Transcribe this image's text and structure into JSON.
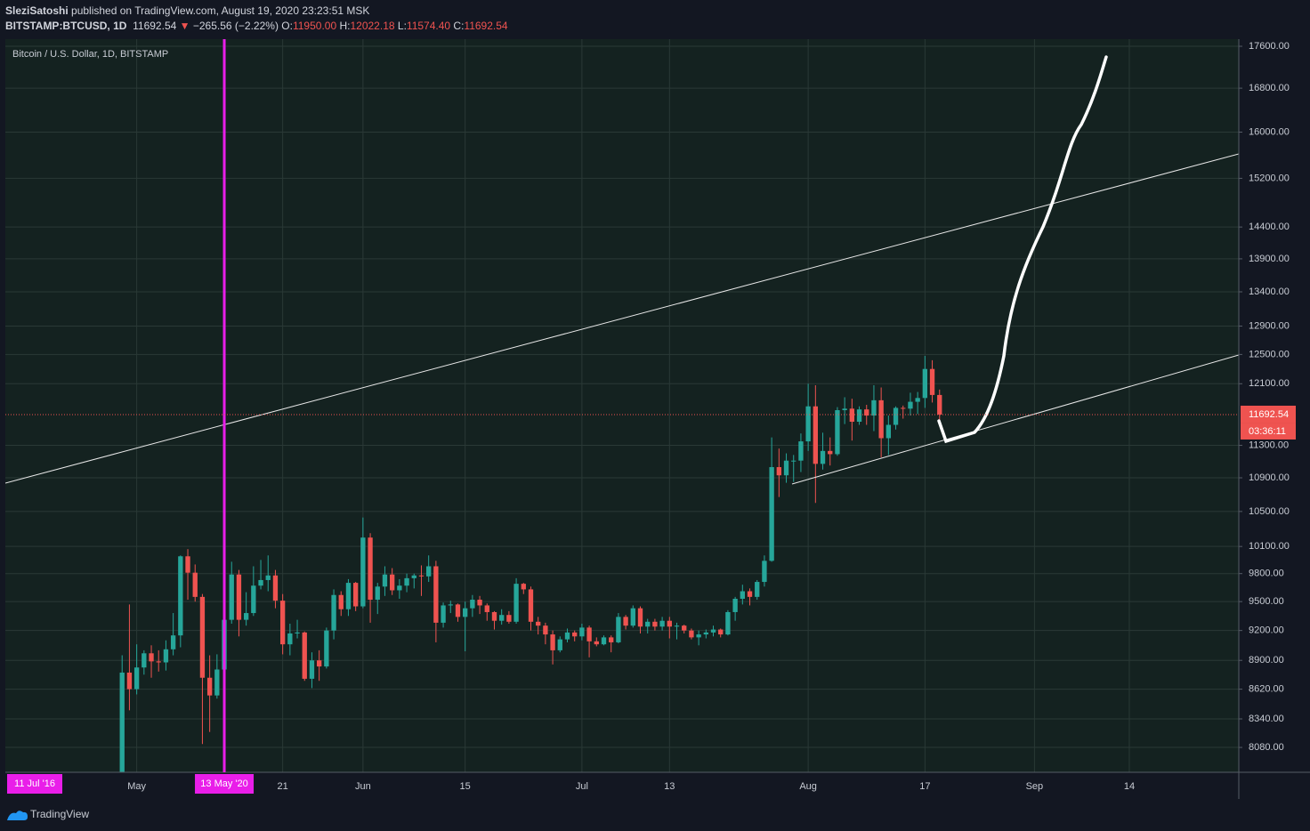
{
  "header": {
    "author": "SleziSatoshi",
    "published": "published on TradingView.com, August 19, 2020 23:23:51 MSK",
    "symbol": "BITSTAMP:BTCUSD, 1D",
    "price": "11692.54",
    "arrow": "▼",
    "change": "−265.56 (−2.22%)",
    "o_label": "O:",
    "o_value": "11950.00",
    "h_label": "H:",
    "h_value": "12022.18",
    "l_label": "L:",
    "l_value": "11574.40",
    "c_label": "C:",
    "c_value": "11692.54"
  },
  "footer": {
    "brand": "TradingView"
  },
  "chart_data": {
    "type": "candlestick",
    "title": "Bitcoin / U.S. Dollar, 1D, BITSTAMP",
    "log_scale": true,
    "grid": true,
    "up_color": "#26a69a",
    "down_color": "#ef5350",
    "x": [
      "2020-04-29",
      "2020-04-30",
      "2020-05-01",
      "2020-05-02",
      "2020-05-03",
      "2020-05-04",
      "2020-05-05",
      "2020-05-06",
      "2020-05-07",
      "2020-05-08",
      "2020-05-09",
      "2020-05-10",
      "2020-05-11",
      "2020-05-12",
      "2020-05-13",
      "2020-05-14",
      "2020-05-15",
      "2020-05-16",
      "2020-05-17",
      "2020-05-18",
      "2020-05-19",
      "2020-05-20",
      "2020-05-21",
      "2020-05-22",
      "2020-05-23",
      "2020-05-24",
      "2020-05-25",
      "2020-05-26",
      "2020-05-27",
      "2020-05-28",
      "2020-05-29",
      "2020-05-30",
      "2020-05-31",
      "2020-06-01",
      "2020-06-02",
      "2020-06-03",
      "2020-06-04",
      "2020-06-05",
      "2020-06-06",
      "2020-06-07",
      "2020-06-08",
      "2020-06-09",
      "2020-06-10",
      "2020-06-11",
      "2020-06-12",
      "2020-06-13",
      "2020-06-14",
      "2020-06-15",
      "2020-06-16",
      "2020-06-17",
      "2020-06-18",
      "2020-06-19",
      "2020-06-20",
      "2020-06-21",
      "2020-06-22",
      "2020-06-23",
      "2020-06-24",
      "2020-06-25",
      "2020-06-26",
      "2020-06-27",
      "2020-06-28",
      "2020-06-29",
      "2020-06-30",
      "2020-07-01",
      "2020-07-02",
      "2020-07-03",
      "2020-07-04",
      "2020-07-05",
      "2020-07-06",
      "2020-07-07",
      "2020-07-08",
      "2020-07-09",
      "2020-07-10",
      "2020-07-11",
      "2020-07-12",
      "2020-07-13",
      "2020-07-14",
      "2020-07-15",
      "2020-07-16",
      "2020-07-17",
      "2020-07-18",
      "2020-07-19",
      "2020-07-20",
      "2020-07-21",
      "2020-07-22",
      "2020-07-23",
      "2020-07-24",
      "2020-07-25",
      "2020-07-26",
      "2020-07-27",
      "2020-07-28",
      "2020-07-29",
      "2020-07-30",
      "2020-07-31",
      "2020-08-01",
      "2020-08-02",
      "2020-08-03",
      "2020-08-04",
      "2020-08-05",
      "2020-08-06",
      "2020-08-07",
      "2020-08-08",
      "2020-08-09",
      "2020-08-10",
      "2020-08-11",
      "2020-08-12",
      "2020-08-13",
      "2020-08-14",
      "2020-08-15",
      "2020-08-16",
      "2020-08-17",
      "2020-08-18",
      "2020-08-19"
    ],
    "open": [
      7760,
      8780,
      8620,
      8830,
      8970,
      8890,
      8880,
      9010,
      9150,
      9990,
      9810,
      9550,
      8730,
      8560,
      8810,
      9310,
      9790,
      9310,
      9380,
      9670,
      9730,
      9780,
      9510,
      9060,
      9170,
      9180,
      8720,
      8900,
      8840,
      9200,
      9570,
      9420,
      9700,
      9450,
      10200,
      9520,
      9660,
      9790,
      9620,
      9670,
      9750,
      9780,
      9770,
      9880,
      9280,
      9460,
      9470,
      9340,
      9430,
      9520,
      9460,
      9390,
      9300,
      9360,
      9290,
      9690,
      9630,
      9290,
      9250,
      9160,
      9000,
      9110,
      9180,
      9140,
      9230,
      9090,
      9060,
      9130,
      9080,
      9340,
      9250,
      9430,
      9240,
      9290,
      9240,
      9300,
      9240,
      9250,
      9200,
      9130,
      9160,
      9180,
      9210,
      9160,
      9390,
      9530,
      9610,
      9550,
      9710,
      9940,
      11030,
      10930,
      11110,
      11110,
      11350,
      11800,
      11070,
      11230,
      11190,
      11750,
      11770,
      11600,
      11760,
      11680,
      11880,
      11390,
      11560,
      11780,
      11770,
      11860,
      11910,
      12300,
      11950
    ],
    "high": [
      8950,
      9470,
      9060,
      9000,
      9050,
      9000,
      9100,
      9380,
      10000,
      10070,
      9900,
      9580,
      8950,
      8960,
      9400,
      9930,
      9840,
      9600,
      9880,
      9950,
      10000,
      9840,
      9580,
      9270,
      9310,
      9190,
      8980,
      9000,
      9230,
      9630,
      9610,
      9740,
      9710,
      10430,
      10250,
      9700,
      9880,
      9860,
      9740,
      9800,
      9800,
      9890,
      10000,
      9940,
      9490,
      9510,
      9480,
      9500,
      9570,
      9560,
      9480,
      9400,
      9420,
      9400,
      9750,
      9700,
      9660,
      9340,
      9280,
      9200,
      9140,
      9220,
      9200,
      9270,
      9250,
      9130,
      9150,
      9150,
      9380,
      9360,
      9460,
      9450,
      9320,
      9320,
      9340,
      9340,
      9280,
      9260,
      9220,
      9200,
      9210,
      9250,
      9220,
      9410,
      9550,
      9680,
      9640,
      9730,
      10000,
      11400,
      11260,
      11200,
      11180,
      11450,
      12100,
      12080,
      11460,
      11400,
      11790,
      11920,
      11900,
      11800,
      11820,
      12080,
      12050,
      11680,
      11800,
      11810,
      11980,
      11990,
      12480,
      12420,
      12022.18
    ],
    "low": [
      7700,
      8420,
      8570,
      8760,
      8730,
      8790,
      8800,
      8950,
      9030,
      9520,
      9500,
      8110,
      8220,
      8530,
      8800,
      9270,
      9140,
      9250,
      9350,
      9630,
      9610,
      9430,
      8960,
      8950,
      9120,
      8700,
      8630,
      8700,
      8820,
      9110,
      9350,
      9350,
      9400,
      9430,
      9280,
      9370,
      9560,
      9570,
      9530,
      9600,
      9640,
      9560,
      9710,
      9080,
      9230,
      9380,
      9290,
      8990,
      9340,
      9370,
      9300,
      9210,
      9260,
      9270,
      9270,
      9580,
      9200,
      9160,
      9060,
      8860,
      8980,
      9080,
      9090,
      9100,
      8930,
      9040,
      9050,
      8980,
      9070,
      9210,
      9230,
      9170,
      9170,
      9200,
      9200,
      9120,
      9110,
      9170,
      9110,
      9050,
      9120,
      9140,
      9130,
      9150,
      9300,
      9470,
      9460,
      9520,
      9660,
      9930,
      10670,
      10840,
      10850,
      10970,
      11230,
      10600,
      11000,
      11050,
      11170,
      11570,
      11360,
      11560,
      11560,
      11480,
      11150,
      11180,
      11500,
      11640,
      11680,
      11700,
      11780,
      11850,
      11574.4
    ],
    "close": [
      8780,
      8620,
      8830,
      8970,
      8890,
      8880,
      9010,
      9150,
      9990,
      9810,
      9550,
      8730,
      8560,
      8810,
      9310,
      9790,
      9310,
      9380,
      9670,
      9730,
      9780,
      9510,
      9060,
      9170,
      9180,
      8720,
      8900,
      8840,
      9200,
      9570,
      9420,
      9700,
      9450,
      10200,
      9520,
      9660,
      9790,
      9620,
      9670,
      9750,
      9780,
      9770,
      9880,
      9280,
      9460,
      9470,
      9340,
      9430,
      9520,
      9460,
      9390,
      9300,
      9360,
      9290,
      9690,
      9630,
      9290,
      9250,
      9160,
      9000,
      9110,
      9180,
      9140,
      9230,
      9090,
      9060,
      9130,
      9080,
      9340,
      9250,
      9430,
      9240,
      9290,
      9240,
      9300,
      9240,
      9250,
      9200,
      9130,
      9160,
      9180,
      9210,
      9160,
      9390,
      9530,
      9610,
      9550,
      9710,
      9940,
      11030,
      10930,
      11110,
      11110,
      11350,
      11800,
      11070,
      11230,
      11190,
      11750,
      11770,
      11600,
      11760,
      11680,
      11880,
      11390,
      11560,
      11780,
      11770,
      11860,
      11910,
      12300,
      11950,
      11692.54
    ],
    "xlim": [
      "2020-04-13",
      "2020-09-29"
    ],
    "xticks": [
      {
        "value": "2020-05-01",
        "label": "May"
      },
      {
        "value": "2020-05-21",
        "label": "21"
      },
      {
        "value": "2020-06-01",
        "label": "Jun"
      },
      {
        "value": "2020-06-15",
        "label": "15"
      },
      {
        "value": "2020-07-01",
        "label": "Jul"
      },
      {
        "value": "2020-07-13",
        "label": "13"
      },
      {
        "value": "2020-08-01",
        "label": "Aug"
      },
      {
        "value": "2020-08-17",
        "label": "17"
      },
      {
        "value": "2020-09-01",
        "label": "Sep"
      },
      {
        "value": "2020-09-14",
        "label": "14"
      }
    ],
    "ylim": [
      7860,
      17740
    ],
    "yticks": [
      {
        "value": 8080,
        "label": "8080.00"
      },
      {
        "value": 8340,
        "label": "8340.00"
      },
      {
        "value": 8620,
        "label": "8620.00"
      },
      {
        "value": 8900,
        "label": "8900.00"
      },
      {
        "value": 9200,
        "label": "9200.00"
      },
      {
        "value": 9500,
        "label": "9500.00"
      },
      {
        "value": 9800,
        "label": "9800.00"
      },
      {
        "value": 10100,
        "label": "10100.00"
      },
      {
        "value": 10500,
        "label": "10500.00"
      },
      {
        "value": 10900,
        "label": "10900.00"
      },
      {
        "value": 11300,
        "label": "11300.00"
      },
      {
        "value": 12100,
        "label": "12100.00"
      },
      {
        "value": 12500,
        "label": "12500.00"
      },
      {
        "value": 12900,
        "label": "12900.00"
      },
      {
        "value": 13400,
        "label": "13400.00"
      },
      {
        "value": 13900,
        "label": "13900.00"
      },
      {
        "value": 14400,
        "label": "14400.00"
      },
      {
        "value": 15200,
        "label": "15200.00"
      },
      {
        "value": 16000,
        "label": "16000.00"
      },
      {
        "value": 16800,
        "label": "16800.00"
      },
      {
        "value": 17600,
        "label": "17600.00"
      }
    ],
    "marker": {
      "date": "2020-05-13",
      "label": "13 May '20",
      "color": "#e91ee9"
    },
    "range_start_label": "11 Jul '16",
    "countdown": "03:36:11"
  }
}
